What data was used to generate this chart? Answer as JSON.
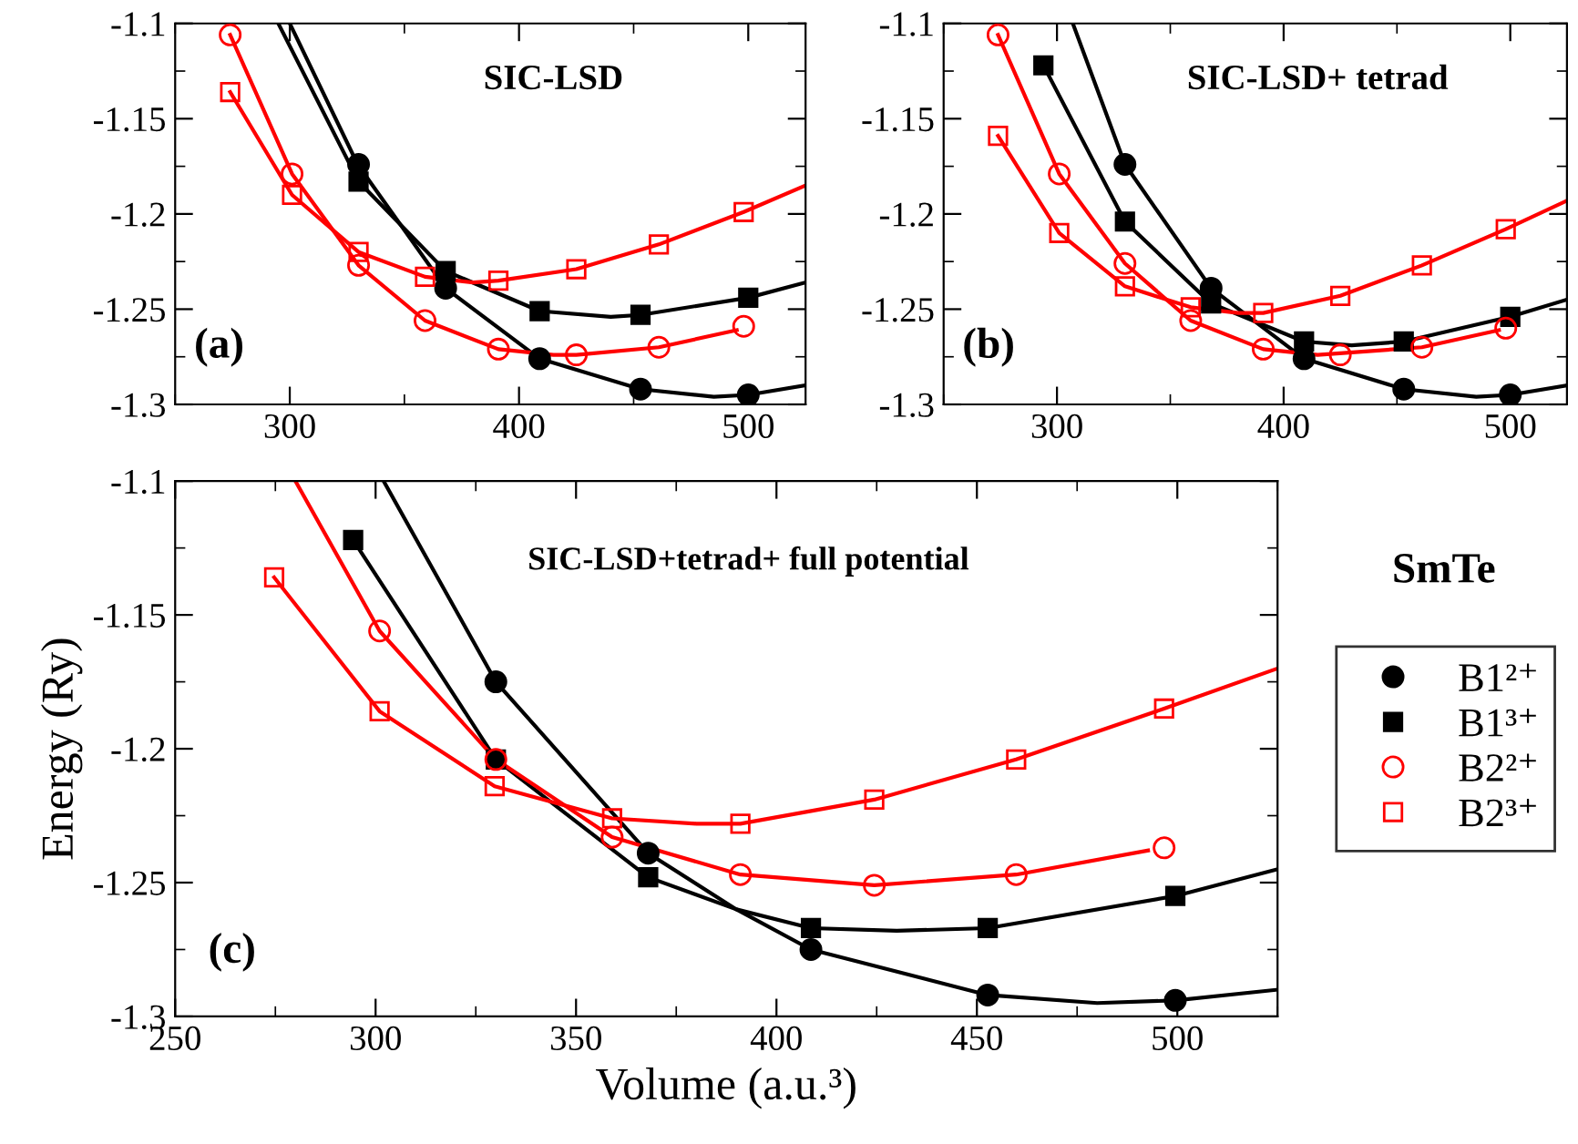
{
  "chart_data": [
    {
      "type": "scatter",
      "xlim": [
        250,
        525
      ],
      "ylim": [
        -1.3,
        -1.1
      ],
      "xticks": [
        300,
        400,
        500
      ],
      "yticks": [
        -1.3,
        -1.25,
        -1.2,
        -1.15,
        -1.1
      ],
      "annotations": [
        "SIC-LSD",
        "(a)"
      ],
      "series": [
        {
          "type": "line",
          "color": "#000000",
          "x": [
            300,
            329.6,
            368,
            409,
            453,
            485,
            500,
            525
          ],
          "values": [
            -1.1,
            -1.174,
            -1.239,
            -1.276,
            -1.292,
            -1.296,
            -1.295,
            -1.29
          ]
        },
        {
          "type": "line",
          "color": "#000000",
          "x": [
            295,
            330,
            368,
            409,
            440,
            453,
            500,
            525
          ],
          "values": [
            -1.1,
            -1.183,
            -1.23,
            -1.251,
            -1.254,
            -1.253,
            -1.244,
            -1.236
          ]
        },
        {
          "type": "line",
          "color": "#ff0000",
          "x": [
            274,
            301,
            330,
            359,
            391,
            415,
            425,
            461,
            495
          ],
          "values": [
            -1.106,
            -1.179,
            -1.227,
            -1.256,
            -1.271,
            -1.274,
            -1.274,
            -1.27,
            -1.261
          ]
        },
        {
          "type": "line",
          "color": "#ff0000",
          "x": [
            274,
            301,
            330,
            359,
            380,
            391,
            425,
            461,
            498,
            525
          ],
          "values": [
            -1.136,
            -1.19,
            -1.22,
            -1.233,
            -1.236,
            -1.235,
            -1.229,
            -1.216,
            -1.199,
            -1.185
          ]
        },
        {
          "marker": "circle",
          "color": "#000000",
          "x": [
            330,
            368,
            409,
            453,
            500
          ],
          "values": [
            -1.174,
            -1.239,
            -1.276,
            -1.292,
            -1.295
          ]
        },
        {
          "marker": "square",
          "color": "#000000",
          "x": [
            330,
            368,
            409,
            453,
            500
          ],
          "values": [
            -1.183,
            -1.23,
            -1.251,
            -1.253,
            -1.244
          ]
        },
        {
          "marker": "circle",
          "color": "#ff0000",
          "x": [
            274,
            301,
            330,
            359,
            391,
            425,
            461,
            498
          ],
          "values": [
            -1.106,
            -1.179,
            -1.227,
            -1.256,
            -1.271,
            -1.274,
            -1.27,
            -1.259
          ]
        },
        {
          "marker": "square",
          "color": "#ff0000",
          "x": [
            274,
            301,
            330,
            359,
            391,
            425,
            461,
            498
          ],
          "values": [
            -1.136,
            -1.19,
            -1.22,
            -1.233,
            -1.235,
            -1.229,
            -1.216,
            -1.199
          ]
        }
      ]
    },
    {
      "type": "scatter",
      "xlim": [
        250,
        525
      ],
      "ylim": [
        -1.3,
        -1.1
      ],
      "xticks": [
        300,
        400,
        500
      ],
      "yticks": [
        -1.3,
        -1.25,
        -1.2,
        -1.15,
        -1.1
      ],
      "annotations": [
        "SIC-LSD+ tetrad",
        "(b)"
      ],
      "series": [
        {
          "type": "line",
          "color": "#000000",
          "x": [
            307,
            330,
            368,
            409,
            453,
            485,
            500,
            525
          ],
          "values": [
            -1.1,
            -1.174,
            -1.239,
            -1.276,
            -1.292,
            -1.296,
            -1.295,
            -1.29
          ]
        },
        {
          "type": "line",
          "color": "#000000",
          "x": [
            294,
            330,
            368,
            409,
            430,
            453,
            500,
            525
          ],
          "values": [
            -1.122,
            -1.204,
            -1.247,
            -1.267,
            -1.269,
            -1.267,
            -1.254,
            -1.245
          ]
        },
        {
          "type": "line",
          "color": "#ff0000",
          "x": [
            274,
            301,
            330,
            359,
            391,
            415,
            461,
            495
          ],
          "values": [
            -1.106,
            -1.179,
            -1.226,
            -1.256,
            -1.271,
            -1.274,
            -1.27,
            -1.261
          ]
        },
        {
          "type": "line",
          "color": "#ff0000",
          "x": [
            274,
            301,
            330,
            359,
            380,
            391,
            425,
            461,
            498,
            525
          ],
          "values": [
            -1.159,
            -1.21,
            -1.238,
            -1.249,
            -1.252,
            -1.252,
            -1.243,
            -1.227,
            -1.208,
            -1.193
          ]
        },
        {
          "marker": "circle",
          "color": "#000000",
          "x": [
            330,
            368,
            409,
            453,
            500
          ],
          "values": [
            -1.174,
            -1.239,
            -1.276,
            -1.292,
            -1.295
          ]
        },
        {
          "marker": "square",
          "color": "#000000",
          "x": [
            294,
            330,
            368,
            409,
            453,
            500
          ],
          "values": [
            -1.122,
            -1.204,
            -1.247,
            -1.267,
            -1.267,
            -1.254
          ]
        },
        {
          "marker": "circle",
          "color": "#ff0000",
          "x": [
            274,
            301,
            330,
            359,
            391,
            425,
            461,
            498
          ],
          "values": [
            -1.106,
            -1.179,
            -1.226,
            -1.256,
            -1.271,
            -1.274,
            -1.27,
            -1.26
          ]
        },
        {
          "marker": "square",
          "color": "#ff0000",
          "x": [
            274,
            301,
            330,
            359,
            391,
            425,
            461,
            498
          ],
          "values": [
            -1.159,
            -1.21,
            -1.238,
            -1.249,
            -1.252,
            -1.243,
            -1.227,
            -1.208
          ]
        }
      ]
    },
    {
      "type": "scatter",
      "xlim": [
        250,
        525
      ],
      "ylim": [
        -1.3,
        -1.1
      ],
      "xticks": [
        250,
        300,
        350,
        400,
        450,
        500
      ],
      "yticks": [
        -1.3,
        -1.25,
        -1.2,
        -1.15,
        -1.1
      ],
      "xlabel": "Volume (a.u.³)",
      "ylabel": "Energy (Ry)",
      "legend": "right",
      "annotations": [
        "SIC-LSD+tetrad+ full potential",
        "(c)",
        "SmTe"
      ],
      "series": [
        {
          "type": "line",
          "color": "#000000",
          "x": [
            302,
            330,
            368,
            390,
            408.6,
            452.7,
            480,
            499.5,
            525
          ],
          "values": [
            -1.1,
            -1.175,
            -1.239,
            -1.26,
            -1.275,
            -1.292,
            -1.295,
            -1.294,
            -1.29
          ]
        },
        {
          "type": "line",
          "color": "#000000",
          "x": [
            294.4,
            330,
            368,
            390,
            408.6,
            430,
            452.7,
            499.5,
            525
          ],
          "values": [
            -1.122,
            -1.204,
            -1.248,
            -1.26,
            -1.267,
            -1.268,
            -1.267,
            -1.255,
            -1.245
          ]
        },
        {
          "type": "line",
          "color": "#ff0000",
          "x": [
            280,
            301,
            330,
            359,
            391,
            424.4,
            459.8,
            492.7
          ],
          "values": [
            -1.1,
            -1.156,
            -1.204,
            -1.233,
            -1.247,
            -1.251,
            -1.247,
            -1.238
          ]
        },
        {
          "type": "line",
          "color": "#ff0000",
          "x": [
            274.7,
            301,
            329.7,
            359,
            380,
            391,
            424.4,
            459.8,
            496.7,
            525
          ],
          "values": [
            -1.136,
            -1.186,
            -1.214,
            -1.226,
            -1.228,
            -1.228,
            -1.219,
            -1.204,
            -1.185,
            -1.17
          ]
        },
        {
          "name": "B1²⁺",
          "marker": "circle",
          "color": "#000000",
          "x": [
            330,
            368,
            408.6,
            452.7,
            499.5
          ],
          "values": [
            -1.175,
            -1.239,
            -1.275,
            -1.292,
            -1.294
          ]
        },
        {
          "name": "B1³⁺",
          "marker": "square",
          "color": "#000000",
          "x": [
            294.4,
            330,
            368,
            408.6,
            452.7,
            499.5
          ],
          "values": [
            -1.122,
            -1.204,
            -1.248,
            -1.267,
            -1.267,
            -1.255
          ]
        },
        {
          "name": "B2²⁺",
          "marker": "circle",
          "color": "#ff0000",
          "x": [
            301,
            330,
            359,
            391,
            424.4,
            459.8,
            496.7
          ],
          "values": [
            -1.156,
            -1.204,
            -1.233,
            -1.247,
            -1.251,
            -1.247,
            -1.237
          ]
        },
        {
          "name": "B2³⁺",
          "marker": "square",
          "color": "#ff0000",
          "x": [
            274.7,
            301,
            329.7,
            359,
            391,
            424.4,
            459.8,
            496.7
          ],
          "values": [
            -1.136,
            -1.186,
            -1.214,
            -1.226,
            -1.228,
            -1.219,
            -1.204,
            -1.185
          ]
        }
      ]
    }
  ]
}
